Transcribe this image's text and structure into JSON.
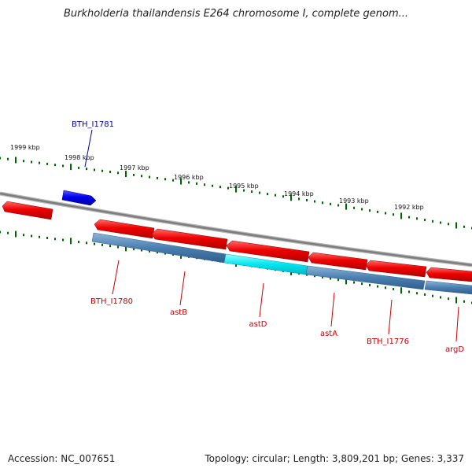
{
  "title": "Burkholderia thailandensis E264 chromosome I, complete genom...",
  "footer": {
    "accession": "Accession: NC_007651",
    "topology": "Topology: circular; Length: 3,809,201 bp; Genes: 3,337"
  },
  "colors": {
    "gene_forward": "#0000ff",
    "gene_reverse": "#ff0000",
    "operon": "#4a7fb0",
    "highlight": "#00e6f0",
    "backbone": "#808080",
    "tick": "#006400",
    "label_reverse": "#cc0000",
    "label_forward": "#0000aa"
  },
  "kbp_labels": [
    "1999 kbp",
    "1998 kbp",
    "1997 kbp",
    "1996 kbp",
    "1995 kbp",
    "1994 kbp",
    "1993 kbp",
    "1992 kbp"
  ],
  "gene_labels": [
    {
      "text": "BTH_I1781",
      "strand": "forward"
    },
    {
      "text": "BTH_I1780",
      "strand": "reverse"
    },
    {
      "text": "astB",
      "strand": "reverse"
    },
    {
      "text": "astD",
      "strand": "reverse"
    },
    {
      "text": "astA",
      "strand": "reverse"
    },
    {
      "text": "BTH_I1776",
      "strand": "reverse"
    },
    {
      "text": "argD",
      "strand": "reverse"
    }
  ]
}
